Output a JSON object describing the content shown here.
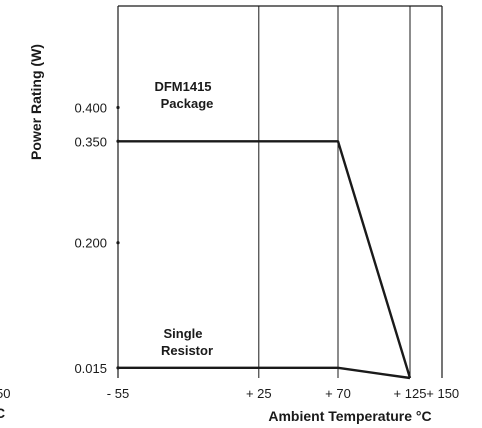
{
  "chart_data": {
    "type": "line",
    "title": "",
    "xlabel": "Ambient Temperature °C",
    "ylabel": "Power Rating (W)",
    "x_tick_labels": [
      {
        "value": -55,
        "label": "- 55"
      },
      {
        "value": 25,
        "label": "+ 25"
      },
      {
        "value": 70,
        "label": "+ 70"
      },
      {
        "value": 125,
        "label": "+ 125"
      },
      {
        "value": 150,
        "label": "+ 150"
      }
    ],
    "y_tick_labels": [
      {
        "value": 0.015,
        "label": "0.015"
      },
      {
        "value": 0.2,
        "label": "0.200"
      },
      {
        "value": 0.35,
        "label": "0.350"
      },
      {
        "value": 0.4,
        "label": "0.400"
      }
    ],
    "vertical_gridlines_at": [
      25,
      70,
      125
    ],
    "xlim": [
      -55,
      150
    ],
    "ylim": [
      0.0,
      0.55
    ],
    "grid": "vertical lines only",
    "legend": "none",
    "series": [
      {
        "annotation": [
          "DFM1415",
          "Package"
        ],
        "x": [
          -55,
          70,
          125
        ],
        "y": [
          0.35,
          0.35,
          0.0
        ]
      },
      {
        "annotation": [
          "Single",
          "Resistor"
        ],
        "x": [
          -55,
          70,
          125
        ],
        "y": [
          0.015,
          0.015,
          0.0
        ]
      }
    ],
    "cropped_fragments": {
      "left_number": "50",
      "left_unit": "C"
    }
  }
}
